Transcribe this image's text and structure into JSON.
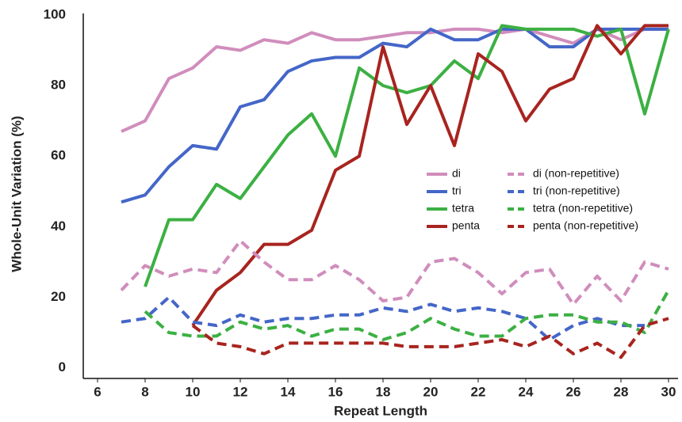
{
  "chart_data": {
    "type": "line",
    "x_label": "Repeat Length",
    "y_label": "Whole-Unit Variation (%)",
    "x": [
      7,
      8,
      9,
      10,
      11,
      12,
      13,
      14,
      15,
      16,
      17,
      18,
      19,
      20,
      21,
      22,
      23,
      24,
      25,
      26,
      27,
      28,
      29,
      30
    ],
    "xlim": [
      5.4,
      30.4
    ],
    "xticks": [
      6,
      8,
      10,
      12,
      14,
      16,
      18,
      20,
      22,
      24,
      26,
      28,
      30
    ],
    "ylim": [
      -3,
      100
    ],
    "yticks": [
      0,
      20,
      40,
      60,
      80,
      100
    ],
    "grid": false,
    "legend": "center-right",
    "series": [
      {
        "name": "di",
        "color": "#d08dbc",
        "dashed": false,
        "values": [
          67,
          70,
          82,
          85,
          91,
          90,
          93,
          92,
          95,
          93,
          93,
          94,
          95,
          95,
          96,
          96,
          95,
          96,
          94,
          92,
          96,
          93,
          96,
          96
        ]
      },
      {
        "name": "tri",
        "color": "#4466c8",
        "dashed": false,
        "values": [
          47,
          49,
          57,
          63,
          62,
          74,
          76,
          84,
          87,
          88,
          88,
          92,
          91,
          96,
          93,
          93,
          96,
          96,
          91,
          91,
          96,
          96,
          96,
          96
        ]
      },
      {
        "name": "tetra",
        "color": "#3cb043",
        "dashed": false,
        "values": [
          null,
          23,
          42,
          42,
          52,
          48,
          57,
          66,
          72,
          60,
          85,
          80,
          78,
          80,
          87,
          82,
          97,
          96,
          96,
          96,
          94,
          96,
          72,
          96
        ]
      },
      {
        "name": "penta",
        "color": "#a8241f",
        "dashed": false,
        "values": [
          null,
          null,
          null,
          12,
          22,
          27,
          35,
          35,
          39,
          56,
          60,
          91,
          69,
          80,
          63,
          89,
          84,
          70,
          79,
          82,
          97,
          89,
          97,
          97
        ]
      },
      {
        "name": "di (non-repetitive)",
        "color": "#d08dbc",
        "dashed": true,
        "values": [
          22,
          29,
          26,
          28,
          27,
          36,
          30,
          25,
          25,
          29,
          25,
          19,
          20,
          30,
          31,
          27,
          21,
          27,
          28,
          18,
          26,
          19,
          30,
          28
        ]
      },
      {
        "name": "tri (non-repetitive)",
        "color": "#4466c8",
        "dashed": true,
        "values": [
          13,
          14,
          20,
          13,
          12,
          15,
          13,
          14,
          14,
          15,
          15,
          17,
          16,
          18,
          16,
          17,
          16,
          14,
          8,
          12,
          14,
          12,
          12,
          null
        ]
      },
      {
        "name": "tetra (non-repetitive)",
        "color": "#3cb043",
        "dashed": true,
        "values": [
          null,
          16,
          10,
          9,
          9,
          13,
          11,
          12,
          9,
          11,
          11,
          8,
          10,
          14,
          11,
          9,
          9,
          14,
          15,
          15,
          13,
          13,
          10,
          22
        ]
      },
      {
        "name": "penta (non-repetitive)",
        "color": "#a8241f",
        "dashed": true,
        "values": [
          null,
          null,
          null,
          12,
          7,
          6,
          4,
          7,
          7,
          7,
          7,
          7,
          6,
          6,
          6,
          7,
          8,
          6,
          9,
          4,
          7,
          3,
          12,
          14
        ]
      }
    ]
  }
}
